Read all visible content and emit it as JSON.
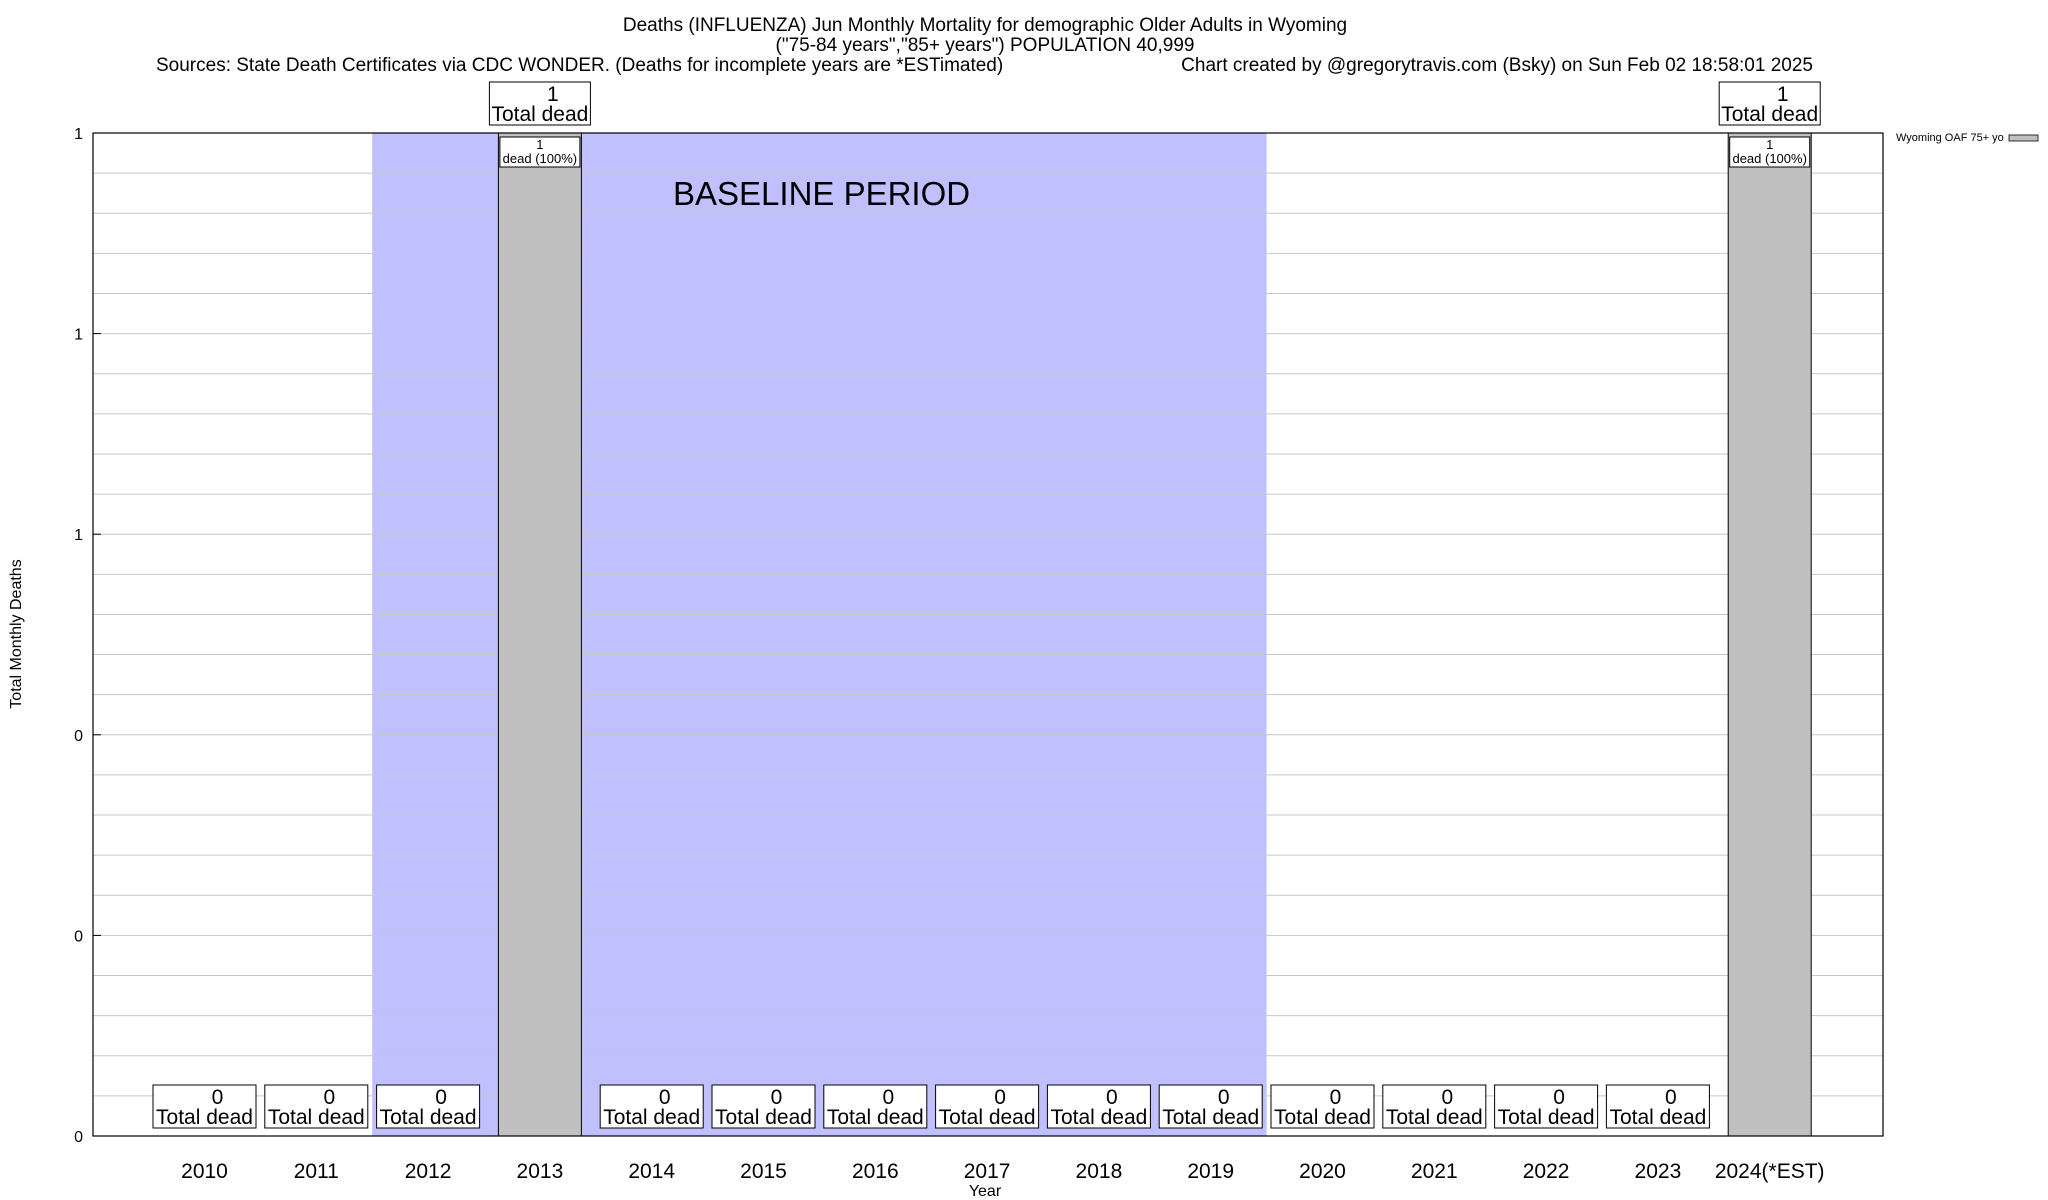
{
  "chart_data": {
    "type": "bar",
    "title_lines": [
      "Deaths (INFLUENZA) Jun Monthly Mortality for demographic Older Adults in Wyoming",
      "(\"75-84 years\",\"85+ years\") POPULATION 40,999"
    ],
    "sources": "Sources: State Death Certificates via CDC WONDER. (Deaths for incomplete years are *ESTimated)",
    "credit": "Chart created by @gregorytravis.com (Bsky) on Sun Feb 02 18:58:01 2025",
    "xlabel": "Year",
    "ylabel": "Total Monthly Deaths",
    "categories": [
      "2010",
      "2011",
      "2012",
      "2013",
      "2014",
      "2015",
      "2016",
      "2017",
      "2018",
      "2019",
      "2020",
      "2021",
      "2022",
      "2023",
      "2024(*EST)"
    ],
    "series": [
      {
        "name": "Wyoming OAF 75+ yo",
        "values": [
          0,
          0,
          0,
          1,
          0,
          0,
          0,
          0,
          0,
          0,
          0,
          0,
          0,
          0,
          1
        ],
        "color": "#c0c0c0"
      }
    ],
    "ylim": [
      0,
      1
    ],
    "y_tick_labels": [
      "0",
      "0",
      "0",
      "1",
      "1",
      "1"
    ],
    "total_label_word": "Total dead",
    "bar_label_text": "dead (100%)",
    "baseline": {
      "label": "BASELINE PERIOD",
      "from_category": "2012",
      "to_category": "2019",
      "color": "#c0c0ff"
    },
    "grid": true,
    "legend_position": "top-right"
  }
}
